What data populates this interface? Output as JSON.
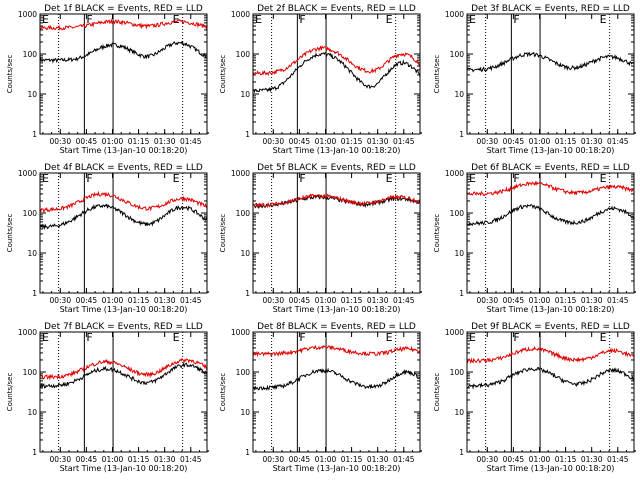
{
  "layout": {
    "rows": 3,
    "cols": 3
  },
  "common": {
    "start_time_label": "Start Time (13-Jan-10 00:18:20)",
    "y_axis_label": "Counts/sec",
    "x_tick_labels": [
      "00:30",
      "00:45",
      "01:00",
      "01:15",
      "01:30",
      "01:45"
    ],
    "y_tick_labels": [
      "1",
      "10",
      "100",
      "1000"
    ],
    "y_log_range": [
      1,
      1000
    ],
    "x_minutes_range": [
      0,
      96
    ],
    "colors": {
      "events": "#000000",
      "lld": "#e00000"
    }
  },
  "chart_data": [
    {
      "id": "1f",
      "type": "line",
      "title": "Det 1f BLACK = Events, RED = LLD",
      "xlabel": "Start Time (13-Jan-10 00:18:20)",
      "ylabel": "Counts/sec",
      "marks": [
        "E",
        "F",
        "E"
      ],
      "vlines_solid": [
        25.5,
        42
      ],
      "vlines_dotted": [
        10.7,
        82
      ],
      "series": [
        {
          "name": "Events",
          "color": "#000000",
          "shape": {
            "base": 70,
            "bumps": [
              [
                42,
                170,
                9
              ],
              [
                80,
                190,
                8
              ]
            ],
            "start_hi": 0
          }
        },
        {
          "name": "LLD",
          "color": "#e00000",
          "shape": {
            "base": 450,
            "bumps": [
              [
                42,
                650,
                10
              ],
              [
                80,
                650,
                9
              ]
            ],
            "start_hi": 0
          }
        }
      ]
    },
    {
      "id": "2f",
      "type": "line",
      "title": "Det 2f BLACK = Events, RED = LLD",
      "xlabel": "Start Time (13-Jan-10 00:18:20)",
      "ylabel": "Counts/sec",
      "marks": [
        "E",
        "F",
        "E"
      ],
      "vlines_solid": [
        25.5,
        42
      ],
      "vlines_dotted": [
        10.7,
        82
      ],
      "series": [
        {
          "name": "Events",
          "color": "#000000",
          "shape": {
            "base": 12,
            "bumps": [
              [
                40,
                100,
                10
              ],
              [
                86,
                60,
                7
              ]
            ],
            "start_hi": 0
          }
        },
        {
          "name": "LLD",
          "color": "#e00000",
          "shape": {
            "base": 33,
            "bumps": [
              [
                40,
                140,
                10
              ],
              [
                86,
                100,
                7
              ]
            ],
            "start_hi": 0
          }
        }
      ]
    },
    {
      "id": "3f",
      "type": "line",
      "title": "Det 3f BLACK = Events, RED = LLD",
      "xlabel": "Start Time (13-Jan-10 00:18:20)",
      "ylabel": "Counts/sec",
      "marks": [
        "E",
        "F",
        "E"
      ],
      "vlines_solid": [
        25.5,
        42
      ],
      "vlines_dotted": [
        10.7,
        82
      ],
      "series": [
        {
          "name": "Events",
          "color": "#000000",
          "shape": {
            "base": 40,
            "bumps": [
              [
                36,
                100,
                10
              ],
              [
                82,
                85,
                9
              ]
            ],
            "start_hi": 0
          }
        },
        {
          "name": "LLD",
          "color": "#e00000",
          "shape": {
            "base": 0,
            "bumps": [],
            "start_hi": 0
          }
        }
      ]
    },
    {
      "id": "4f",
      "type": "line",
      "title": "Det 4f BLACK = Events, RED = LLD",
      "xlabel": "Start Time (13-Jan-10 00:18:20)",
      "ylabel": "Counts/sec",
      "marks": [
        "E",
        "F",
        "E"
      ],
      "vlines_solid": [
        25.5,
        42
      ],
      "vlines_dotted": [
        10.7,
        82
      ],
      "series": [
        {
          "name": "Events",
          "color": "#000000",
          "shape": {
            "base": 45,
            "bumps": [
              [
                36,
                150,
                10
              ],
              [
                82,
                140,
                8
              ]
            ],
            "start_hi": 0
          }
        },
        {
          "name": "LLD",
          "color": "#e00000",
          "shape": {
            "base": 120,
            "bumps": [
              [
                36,
                300,
                10
              ],
              [
                82,
                230,
                8
              ]
            ],
            "start_hi": 0
          }
        }
      ]
    },
    {
      "id": "5f",
      "type": "line",
      "title": "Det 5f BLACK = Events, RED = LLD",
      "xlabel": "Start Time (13-Jan-10 00:18:20)",
      "ylabel": "Counts/sec",
      "marks": [
        "",
        "F",
        "E"
      ],
      "vlines_solid": [
        25.5,
        42
      ],
      "vlines_dotted": [
        10.7,
        82
      ],
      "series": [
        {
          "name": "Events",
          "color": "#000000",
          "shape": {
            "base": 150,
            "bumps": [
              [
                38,
                250,
                12
              ],
              [
                84,
                230,
                9
              ]
            ],
            "start_hi": 0
          }
        },
        {
          "name": "LLD",
          "color": "#e00000",
          "shape": {
            "base": 155,
            "bumps": [
              [
                38,
                270,
                12
              ],
              [
                84,
                250,
                9
              ]
            ],
            "start_hi": 0
          }
        }
      ]
    },
    {
      "id": "6f",
      "type": "line",
      "title": "Det 6f BLACK = Events, RED = LLD",
      "xlabel": "Start Time (13-Jan-10 00:18:20)",
      "ylabel": "Counts/sec",
      "marks": [
        "E",
        "F",
        "E"
      ],
      "vlines_solid": [
        25.5,
        42
      ],
      "vlines_dotted": [
        10.7,
        82
      ],
      "series": [
        {
          "name": "Events",
          "color": "#000000",
          "shape": {
            "base": 55,
            "bumps": [
              [
                35,
                150,
                9
              ],
              [
                84,
                130,
                8
              ]
            ],
            "start_hi": 0
          }
        },
        {
          "name": "LLD",
          "color": "#e00000",
          "shape": {
            "base": 300,
            "bumps": [
              [
                38,
                550,
                10
              ],
              [
                84,
                450,
                9
              ]
            ],
            "start_hi": 0
          }
        }
      ]
    },
    {
      "id": "7f",
      "type": "line",
      "title": "Det 7f BLACK = Events, RED = LLD",
      "xlabel": "Start Time (13-Jan-10 00:18:20)",
      "ylabel": "Counts/sec",
      "marks": [
        "E",
        "F",
        "E"
      ],
      "vlines_solid": [
        25.5,
        42
      ],
      "vlines_dotted": [
        10.7,
        82
      ],
      "series": [
        {
          "name": "Events",
          "color": "#000000",
          "shape": {
            "base": 45,
            "bumps": [
              [
                38,
                120,
                10
              ],
              [
                84,
                150,
                9
              ]
            ],
            "start_hi": 0
          }
        },
        {
          "name": "LLD",
          "color": "#e00000",
          "shape": {
            "base": 75,
            "bumps": [
              [
                38,
                180,
                10
              ],
              [
                84,
                200,
                9
              ]
            ],
            "start_hi": 0
          }
        }
      ]
    },
    {
      "id": "8f",
      "type": "line",
      "title": "Det 8f BLACK = Events, RED = LLD",
      "xlabel": "Start Time (13-Jan-10 00:18:20)",
      "ylabel": "Counts/sec",
      "marks": [
        "",
        "F",
        "E"
      ],
      "vlines_solid": [
        25.5,
        42
      ],
      "vlines_dotted": [
        10.7,
        82
      ],
      "series": [
        {
          "name": "Events",
          "color": "#000000",
          "shape": {
            "base": 40,
            "bumps": [
              [
                40,
                110,
                10
              ],
              [
                88,
                100,
                7
              ]
            ],
            "start_hi": 0
          }
        },
        {
          "name": "LLD",
          "color": "#e00000",
          "shape": {
            "base": 280,
            "bumps": [
              [
                40,
                420,
                11
              ],
              [
                88,
                380,
                7
              ]
            ],
            "start_hi": 0
          }
        }
      ]
    },
    {
      "id": "9f",
      "type": "line",
      "title": "Det 9f BLACK = Events, RED = LLD",
      "xlabel": "Start Time (13-Jan-10 00:18:20)",
      "ylabel": "Counts/sec",
      "marks": [
        "E",
        "F",
        "E"
      ],
      "vlines_solid": [
        25.5,
        42
      ],
      "vlines_dotted": [
        10.7,
        82
      ],
      "series": [
        {
          "name": "Events",
          "color": "#000000",
          "shape": {
            "base": 45,
            "bumps": [
              [
                38,
                120,
                10
              ],
              [
                84,
                110,
                8
              ]
            ],
            "start_hi": 0
          }
        },
        {
          "name": "LLD",
          "color": "#e00000",
          "shape": {
            "base": 190,
            "bumps": [
              [
                38,
                380,
                10
              ],
              [
                84,
                340,
                8
              ]
            ],
            "start_hi": 0
          }
        }
      ]
    }
  ]
}
